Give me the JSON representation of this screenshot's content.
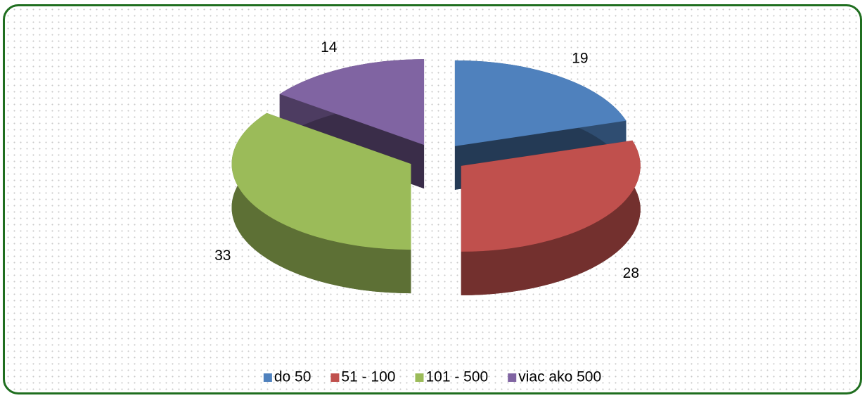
{
  "chart_data": {
    "type": "pie",
    "three_d": true,
    "exploded": true,
    "categories": [
      "do 50",
      "51 - 100",
      "101 - 500",
      "viac ako 500"
    ],
    "values": [
      19,
      28,
      33,
      14
    ],
    "colors": [
      "#4f81bd",
      "#c0504d",
      "#9bbb59",
      "#8064a2"
    ],
    "legend": "bottom"
  }
}
